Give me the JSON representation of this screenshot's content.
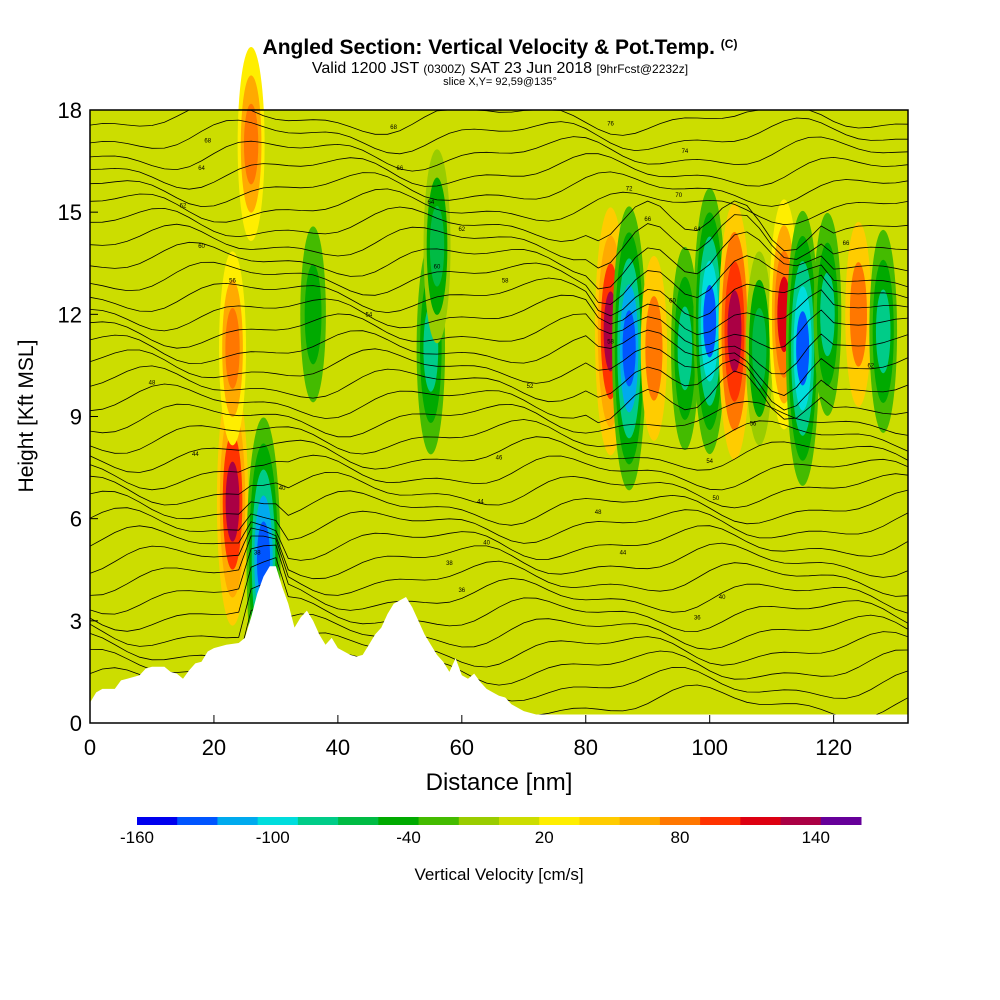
{
  "header": {
    "title_main": "Angled Section: Vertical Velocity & Pot.Temp.",
    "title_unit": "(C)",
    "valid_prefix": "Valid 1200 JST",
    "valid_utc": "(0300Z)",
    "valid_date": "SAT 23 Jun 2018",
    "valid_fcst": "[9hrFcst@2232z]",
    "slice": "slice X,Y= 92,59@135°"
  },
  "colors": {
    "background": "#ffffff",
    "terrain": "#ffffff",
    "contour": "#000000",
    "colorbar": [
      "#0000ee",
      "#0055ff",
      "#00aaee",
      "#00dddd",
      "#00cc88",
      "#00bb44",
      "#00aa00",
      "#44bb00",
      "#99cc00",
      "#ccdd00",
      "#ffee00",
      "#ffcc00",
      "#ffaa00",
      "#ff7700",
      "#ff3300",
      "#dd0011",
      "#aa0044",
      "#660099"
    ]
  },
  "chart_data": {
    "type": "heatmap",
    "xlabel": "Distance [nm]",
    "ylabel": "Height [Kft MSL]",
    "xlim": [
      0,
      132
    ],
    "ylim": [
      0,
      18
    ],
    "xticks": [
      "0",
      "20",
      "40",
      "60",
      "80",
      "100",
      "120"
    ],
    "yticks": [
      "0",
      "3",
      "6",
      "9",
      "12",
      "15",
      "18"
    ],
    "colorbar": {
      "label": "Vertical Velocity [cm/s]",
      "range": [
        -160,
        160
      ],
      "tick_labels": [
        "-160",
        "-100",
        "-40",
        "20",
        "80",
        "140"
      ],
      "tick_values": [
        -160,
        -100,
        -40,
        20,
        80,
        140
      ]
    },
    "velocity_features": [
      {
        "x": 23,
        "y": 6.5,
        "w": 0.8,
        "note": "updraft"
      },
      {
        "x": 28,
        "y": 4.8,
        "w": -1.0,
        "note": "downdraft"
      },
      {
        "x": 23,
        "y": 11,
        "w": 0.5
      },
      {
        "x": 26,
        "y": 17,
        "w": 0.5
      },
      {
        "x": 36,
        "y": 12,
        "w": -0.4
      },
      {
        "x": 55,
        "y": 11,
        "w": -0.6
      },
      {
        "x": 56,
        "y": 14,
        "w": -0.5
      },
      {
        "x": 84,
        "y": 11.5,
        "w": 0.8
      },
      {
        "x": 87,
        "y": 11,
        "w": -1.0
      },
      {
        "x": 91,
        "y": 11,
        "w": 0.45
      },
      {
        "x": 96,
        "y": 11,
        "w": -0.55
      },
      {
        "x": 100,
        "y": 11.8,
        "w": -0.9
      },
      {
        "x": 104,
        "y": 11.5,
        "w": 0.85
      },
      {
        "x": 108,
        "y": 11,
        "w": -0.5
      },
      {
        "x": 112,
        "y": 12,
        "w": 0.7
      },
      {
        "x": 115,
        "y": 11,
        "w": -0.95
      },
      {
        "x": 119,
        "y": 12,
        "w": -0.55
      },
      {
        "x": 124,
        "y": 12,
        "w": 0.45
      },
      {
        "x": 128,
        "y": 11.5,
        "w": -0.55
      }
    ],
    "terrain": {
      "x": [
        0,
        1,
        2,
        4,
        5,
        6,
        8,
        9,
        10,
        12,
        13,
        14,
        15,
        16,
        17,
        18,
        19,
        20,
        22,
        24,
        25,
        26,
        27,
        28,
        29,
        30,
        31,
        32,
        33,
        34,
        35,
        36,
        37,
        38,
        39,
        40,
        41,
        42,
        43,
        44,
        45,
        46,
        47,
        48,
        49,
        50,
        51,
        52,
        53,
        54,
        55,
        56,
        57,
        58,
        59,
        60,
        61,
        62,
        63,
        64,
        65,
        66,
        67,
        68,
        70,
        72,
        74,
        132
      ],
      "height": [
        0.6,
        0.9,
        1.0,
        1.0,
        1.25,
        1.3,
        1.4,
        1.6,
        1.65,
        1.65,
        1.5,
        1.45,
        1.3,
        1.55,
        1.75,
        1.8,
        2.1,
        2.2,
        2.3,
        2.35,
        2.5,
        3.1,
        3.8,
        4.3,
        4.6,
        4.6,
        4.0,
        3.5,
        2.8,
        3.1,
        3.3,
        3.0,
        2.6,
        2.3,
        2.5,
        2.2,
        2.1,
        2.0,
        1.95,
        2.0,
        2.3,
        2.6,
        2.8,
        3.2,
        3.5,
        3.6,
        3.7,
        3.4,
        3.0,
        2.6,
        2.3,
        2.0,
        1.8,
        1.5,
        1.9,
        1.4,
        1.3,
        1.45,
        1.2,
        1.0,
        0.9,
        0.8,
        0.75,
        0.55,
        0.35,
        0.25,
        0.25,
        0.25
      ]
    },
    "contour_levels": [
      "24",
      "26",
      "28",
      "30",
      "32",
      "34",
      "36",
      "38",
      "40",
      "42",
      "44",
      "46",
      "48",
      "50",
      "52",
      "54",
      "56",
      "58",
      "60",
      "62",
      "64",
      "66",
      "68",
      "70",
      "72",
      "74",
      "76",
      "78",
      "80"
    ],
    "contour_labels_shown": [
      {
        "x": 19,
        "y": 17.1,
        "text": "68"
      },
      {
        "x": 18,
        "y": 16.3,
        "text": "64"
      },
      {
        "x": 15,
        "y": 15.2,
        "text": "62"
      },
      {
        "x": 18,
        "y": 14.0,
        "text": "60"
      },
      {
        "x": 23,
        "y": 13.0,
        "text": "56"
      },
      {
        "x": 45,
        "y": 12.0,
        "text": "54"
      },
      {
        "x": 10,
        "y": 10.0,
        "text": "48"
      },
      {
        "x": 17,
        "y": 7.9,
        "text": "44"
      },
      {
        "x": 31,
        "y": 6.9,
        "text": "40"
      },
      {
        "x": 27,
        "y": 5.0,
        "text": "38"
      },
      {
        "x": 49,
        "y": 17.5,
        "text": "68"
      },
      {
        "x": 50,
        "y": 16.3,
        "text": "66"
      },
      {
        "x": 55,
        "y": 15.3,
        "text": "64"
      },
      {
        "x": 60,
        "y": 14.5,
        "text": "62"
      },
      {
        "x": 56,
        "y": 13.4,
        "text": "60"
      },
      {
        "x": 67,
        "y": 13.0,
        "text": "58"
      },
      {
        "x": 71,
        "y": 9.9,
        "text": "52"
      },
      {
        "x": 66,
        "y": 7.8,
        "text": "46"
      },
      {
        "x": 63,
        "y": 6.5,
        "text": "44"
      },
      {
        "x": 64,
        "y": 5.3,
        "text": "40"
      },
      {
        "x": 58,
        "y": 4.7,
        "text": "38"
      },
      {
        "x": 60,
        "y": 3.9,
        "text": "36"
      },
      {
        "x": 84,
        "y": 17.6,
        "text": "76"
      },
      {
        "x": 96,
        "y": 16.8,
        "text": "74"
      },
      {
        "x": 87,
        "y": 15.7,
        "text": "72"
      },
      {
        "x": 95,
        "y": 15.5,
        "text": "70"
      },
      {
        "x": 90,
        "y": 14.8,
        "text": "66"
      },
      {
        "x": 98,
        "y": 14.5,
        "text": "64"
      },
      {
        "x": 94,
        "y": 12.4,
        "text": "60"
      },
      {
        "x": 84,
        "y": 11.2,
        "text": "58"
      },
      {
        "x": 122,
        "y": 14.1,
        "text": "66"
      },
      {
        "x": 126,
        "y": 10.5,
        "text": "62"
      },
      {
        "x": 107,
        "y": 8.8,
        "text": "56"
      },
      {
        "x": 100,
        "y": 7.7,
        "text": "54"
      },
      {
        "x": 101,
        "y": 6.6,
        "text": "50"
      },
      {
        "x": 82,
        "y": 6.2,
        "text": "48"
      },
      {
        "x": 86,
        "y": 5.0,
        "text": "44"
      },
      {
        "x": 102,
        "y": 3.7,
        "text": "40"
      },
      {
        "x": 98,
        "y": 3.1,
        "text": "36"
      }
    ]
  }
}
